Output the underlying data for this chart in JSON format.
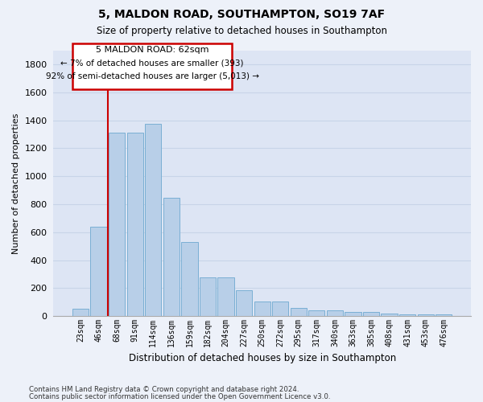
{
  "title1": "5, MALDON ROAD, SOUTHAMPTON, SO19 7AF",
  "title2": "Size of property relative to detached houses in Southampton",
  "xlabel": "Distribution of detached houses by size in Southampton",
  "ylabel": "Number of detached properties",
  "categories": [
    "23sqm",
    "46sqm",
    "68sqm",
    "91sqm",
    "114sqm",
    "136sqm",
    "159sqm",
    "182sqm",
    "204sqm",
    "227sqm",
    "250sqm",
    "272sqm",
    "295sqm",
    "317sqm",
    "340sqm",
    "363sqm",
    "385sqm",
    "408sqm",
    "431sqm",
    "453sqm",
    "476sqm"
  ],
  "values": [
    50,
    640,
    1310,
    1310,
    1375,
    848,
    530,
    275,
    275,
    185,
    105,
    105,
    60,
    40,
    40,
    30,
    30,
    20,
    15,
    10,
    15
  ],
  "bar_color": "#b8cfe8",
  "bar_edge_color": "#7aafd4",
  "ylim": [
    0,
    1900
  ],
  "yticks": [
    0,
    200,
    400,
    600,
    800,
    1000,
    1200,
    1400,
    1600,
    1800
  ],
  "property_line_x": 1.5,
  "ann_line1": "5 MALDON ROAD: 62sqm",
  "ann_line2": "← 7% of detached houses are smaller (393)",
  "ann_line3": "92% of semi-detached houses are larger (5,013) →",
  "footer1": "Contains HM Land Registry data © Crown copyright and database right 2024.",
  "footer2": "Contains public sector information licensed under the Open Government Licence v3.0.",
  "bg_color": "#edf1f9",
  "plot_bg_color": "#dde5f4",
  "grid_color": "#c8d4e8",
  "red_color": "#cc0000"
}
